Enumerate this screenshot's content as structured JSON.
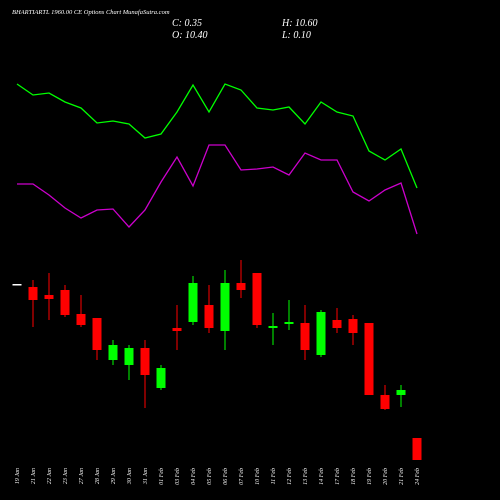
{
  "chart_data": {
    "type": "candlestick",
    "title": "BHARTIARTL 1960.00 CE Options Chart MunafaSutra.com",
    "stats": {
      "close": "C: 0.35",
      "high": "H: 10.60",
      "open": "O: 10.40",
      "low": "L: 0.10"
    },
    "categories": [
      "19 Jan",
      "21 Jan",
      "22 Jan",
      "23 Jan",
      "27 Jan",
      "28 Jan",
      "29 Jan",
      "30 Jan",
      "31 Jan",
      "01 Feb",
      "03 Feb",
      "04 Feb",
      "05 Feb",
      "06 Feb",
      "07 Feb",
      "10 Feb",
      "11 Feb",
      "12 Feb",
      "13 Feb",
      "14 Feb",
      "17 Feb",
      "18 Feb",
      "19 Feb",
      "20 Feb",
      "21 Feb",
      "24 Feb"
    ],
    "open": [
      186,
      183,
      175,
      180,
      156,
      152,
      110,
      105,
      122,
      82,
      142,
      148,
      165,
      139,
      187,
      197,
      142,
      146,
      147,
      115,
      150,
      151,
      147,
      75,
      75,
      32
    ],
    "high": [
      186,
      190,
      197,
      185,
      175,
      152,
      130,
      125,
      130,
      105,
      165,
      194,
      185,
      200,
      210,
      197,
      157,
      170,
      165,
      160,
      162,
      155,
      147,
      85,
      85,
      32
    ],
    "low": [
      186,
      143,
      150,
      153,
      143,
      110,
      105,
      90,
      62,
      80,
      120,
      145,
      137,
      120,
      172,
      142,
      125,
      140,
      110,
      113,
      137,
      125,
      75,
      60,
      63,
      10
    ],
    "close": [
      186,
      170,
      171,
      155,
      145,
      120,
      125,
      122,
      95,
      102,
      139,
      187,
      142,
      187,
      180,
      145,
      144,
      148,
      120,
      158,
      142,
      137,
      75,
      61,
      80,
      10
    ],
    "up_color": "#00ff00",
    "down_color": "#ff0000",
    "flat_color": "#ffffff",
    "series": [
      {
        "color": "#00ff00",
        "values": [
          386,
          375,
          377,
          368,
          362,
          347,
          349,
          346,
          332,
          336,
          358,
          385,
          358,
          386,
          380,
          362,
          360,
          363,
          346,
          368,
          358,
          354,
          319,
          310,
          321,
          282
        ]
      },
      {
        "color": "#cc00cc",
        "values": [
          286,
          286,
          275,
          262,
          252,
          260,
          261,
          243,
          260,
          288,
          313,
          284,
          325,
          325,
          300,
          301,
          303,
          295,
          317,
          310,
          310,
          278,
          269,
          280,
          287,
          236
        ]
      }
    ],
    "ylim": [
      0,
      420
    ]
  }
}
